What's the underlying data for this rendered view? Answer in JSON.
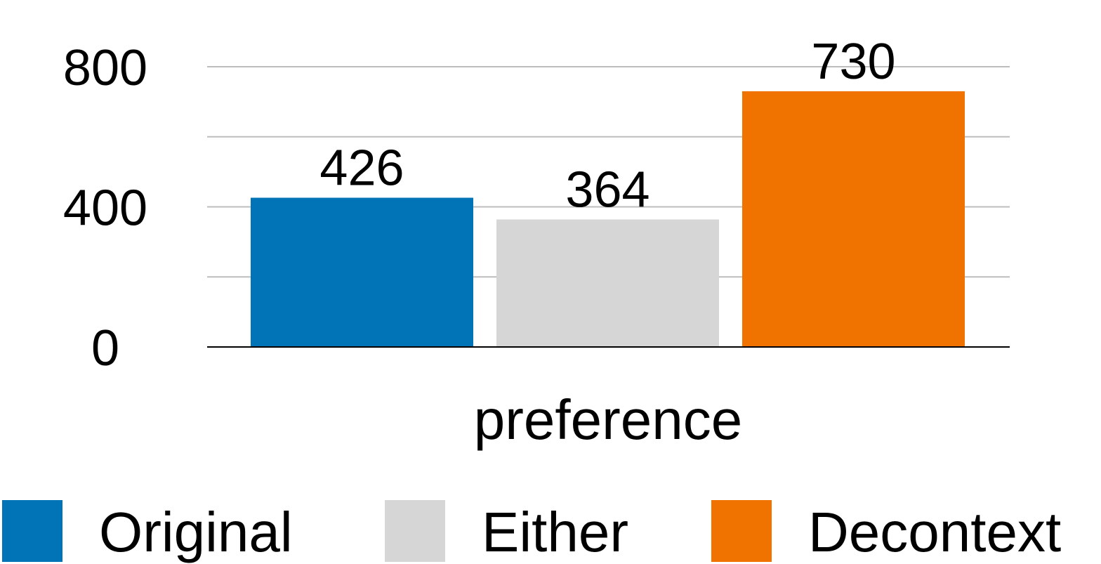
{
  "chart_data": {
    "type": "bar",
    "categories": [
      "preference"
    ],
    "series": [
      {
        "name": "Original",
        "values": [
          426
        ],
        "color": "#0074B7"
      },
      {
        "name": "Either",
        "values": [
          364
        ],
        "color": "#D6D6D6"
      },
      {
        "name": "Decontext",
        "values": [
          730
        ],
        "color": "#F07300"
      }
    ],
    "yticks": [
      "0",
      "400",
      "800"
    ],
    "ylim": [
      0,
      800
    ],
    "xlabel": "preference",
    "ylabel": "",
    "title": "",
    "grid": true,
    "legend_position": "bottom"
  }
}
